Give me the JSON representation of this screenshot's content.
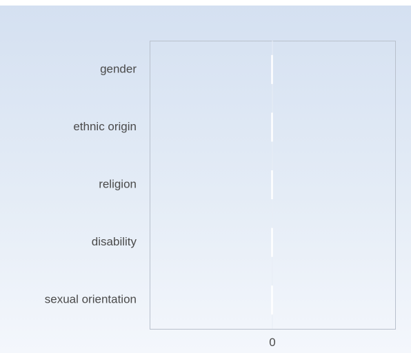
{
  "chart_data": {
    "type": "bar",
    "orientation": "horizontal",
    "categories": [
      "gender",
      "ethnic origin",
      "religion",
      "disability",
      "sexual orientation"
    ],
    "values": [
      0,
      0,
      0,
      0,
      0
    ],
    "xticks": [
      "0"
    ],
    "grid": false,
    "legend": "none",
    "colors": {
      "plot_border": "#b8c0cc",
      "zero_line": "#ffffff",
      "tick_text": "#4a4a4a"
    }
  }
}
